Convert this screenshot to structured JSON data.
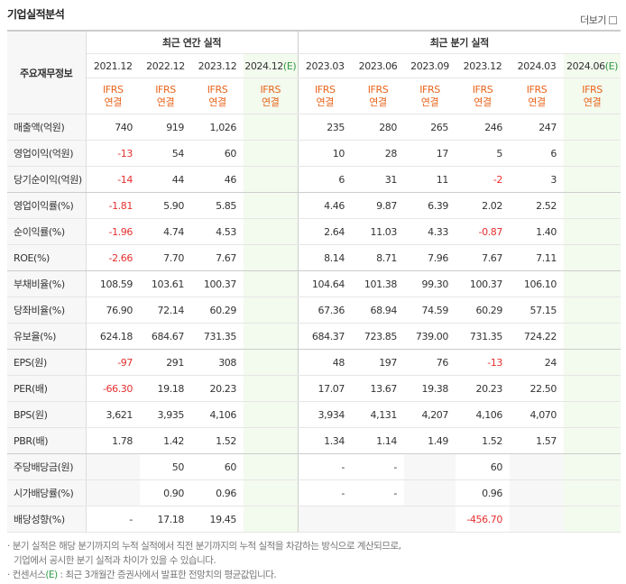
{
  "header": {
    "title": "기업실적분석",
    "more": "더보기"
  },
  "table": {
    "corner": "주요재무정보",
    "groups": [
      "최근 연간 실적",
      "최근 분기 실적"
    ],
    "periods": [
      {
        "label": "2021.12"
      },
      {
        "label": "2022.12"
      },
      {
        "label": "2023.12"
      },
      {
        "label": "2024.12",
        "estimate": "(E)"
      },
      {
        "label": "2023.03"
      },
      {
        "label": "2023.06"
      },
      {
        "label": "2023.09"
      },
      {
        "label": "2023.12"
      },
      {
        "label": "2024.03"
      },
      {
        "label": "2024.06",
        "estimate": "(E)"
      }
    ],
    "standard": [
      "IFRS",
      "연결"
    ],
    "rows": [
      {
        "label": "매출액(억원)",
        "values": [
          "740",
          "919",
          "1,026",
          null,
          "235",
          "280",
          "265",
          "246",
          "247",
          null
        ]
      },
      {
        "label": "영업이익(억원)",
        "values": [
          "-13",
          "54",
          "60",
          null,
          "10",
          "28",
          "17",
          "5",
          "6",
          null
        ]
      },
      {
        "label": "당기순이익(억원)",
        "values": [
          "-14",
          "44",
          "46",
          null,
          "6",
          "31",
          "11",
          "-2",
          "3",
          null
        ]
      },
      {
        "label": "영업이익률(%)",
        "values": [
          "-1.81",
          "5.90",
          "5.85",
          null,
          "4.46",
          "9.87",
          "6.39",
          "2.02",
          "2.52",
          null
        ]
      },
      {
        "label": "순이익률(%)",
        "values": [
          "-1.96",
          "4.74",
          "4.53",
          null,
          "2.64",
          "11.03",
          "4.33",
          "-0.87",
          "1.40",
          null
        ]
      },
      {
        "label": "ROE(%)",
        "values": [
          "-2.66",
          "7.70",
          "7.67",
          null,
          "8.14",
          "8.71",
          "7.96",
          "7.67",
          "7.11",
          null
        ]
      },
      {
        "label": "부채비율(%)",
        "values": [
          "108.59",
          "103.61",
          "100.37",
          null,
          "104.64",
          "101.38",
          "99.30",
          "100.37",
          "106.10",
          null
        ]
      },
      {
        "label": "당좌비율(%)",
        "values": [
          "76.90",
          "72.14",
          "60.29",
          null,
          "67.36",
          "68.94",
          "74.59",
          "60.29",
          "57.15",
          null
        ]
      },
      {
        "label": "유보율(%)",
        "values": [
          "624.18",
          "684.67",
          "731.35",
          null,
          "684.37",
          "723.85",
          "739.00",
          "731.35",
          "724.22",
          null
        ]
      },
      {
        "label": "EPS(원)",
        "values": [
          "-97",
          "291",
          "308",
          null,
          "48",
          "197",
          "76",
          "-13",
          "24",
          null
        ]
      },
      {
        "label": "PER(배)",
        "values": [
          "-66.30",
          "19.18",
          "20.23",
          null,
          "17.07",
          "13.67",
          "19.38",
          "20.23",
          "22.50",
          null
        ]
      },
      {
        "label": "BPS(원)",
        "values": [
          "3,621",
          "3,935",
          "4,106",
          null,
          "3,934",
          "4,131",
          "4,207",
          "4,106",
          "4,070",
          null
        ]
      },
      {
        "label": "PBR(배)",
        "values": [
          "1.78",
          "1.42",
          "1.52",
          null,
          "1.34",
          "1.14",
          "1.49",
          "1.52",
          "1.57",
          null
        ]
      },
      {
        "label": "주당배당금(원)",
        "values": [
          null,
          "50",
          "60",
          null,
          "-",
          "-",
          null,
          "60",
          null,
          null
        ]
      },
      {
        "label": "시가배당률(%)",
        "values": [
          null,
          "0.90",
          "0.96",
          null,
          "-",
          "-",
          null,
          "0.96",
          null,
          null
        ]
      },
      {
        "label": "배당성향(%)",
        "values": [
          "-",
          "17.18",
          "19.45",
          null,
          null,
          null,
          null,
          "-456.70",
          null,
          null
        ]
      }
    ]
  },
  "notes": [
    [
      "분기 실적은 해당 분기까지의 누적 실적에서 직전 분기까지의 누적 실적을 차감하는 방식으로 계산되므로,",
      "기업에서 공시한 분기 실적과 차이가 있을 수 있습니다."
    ],
    [
      "컨센서스",
      "(E)",
      " : 최근 3개월간 증권사에서 발표한 전망치의 평균값입니다."
    ]
  ]
}
